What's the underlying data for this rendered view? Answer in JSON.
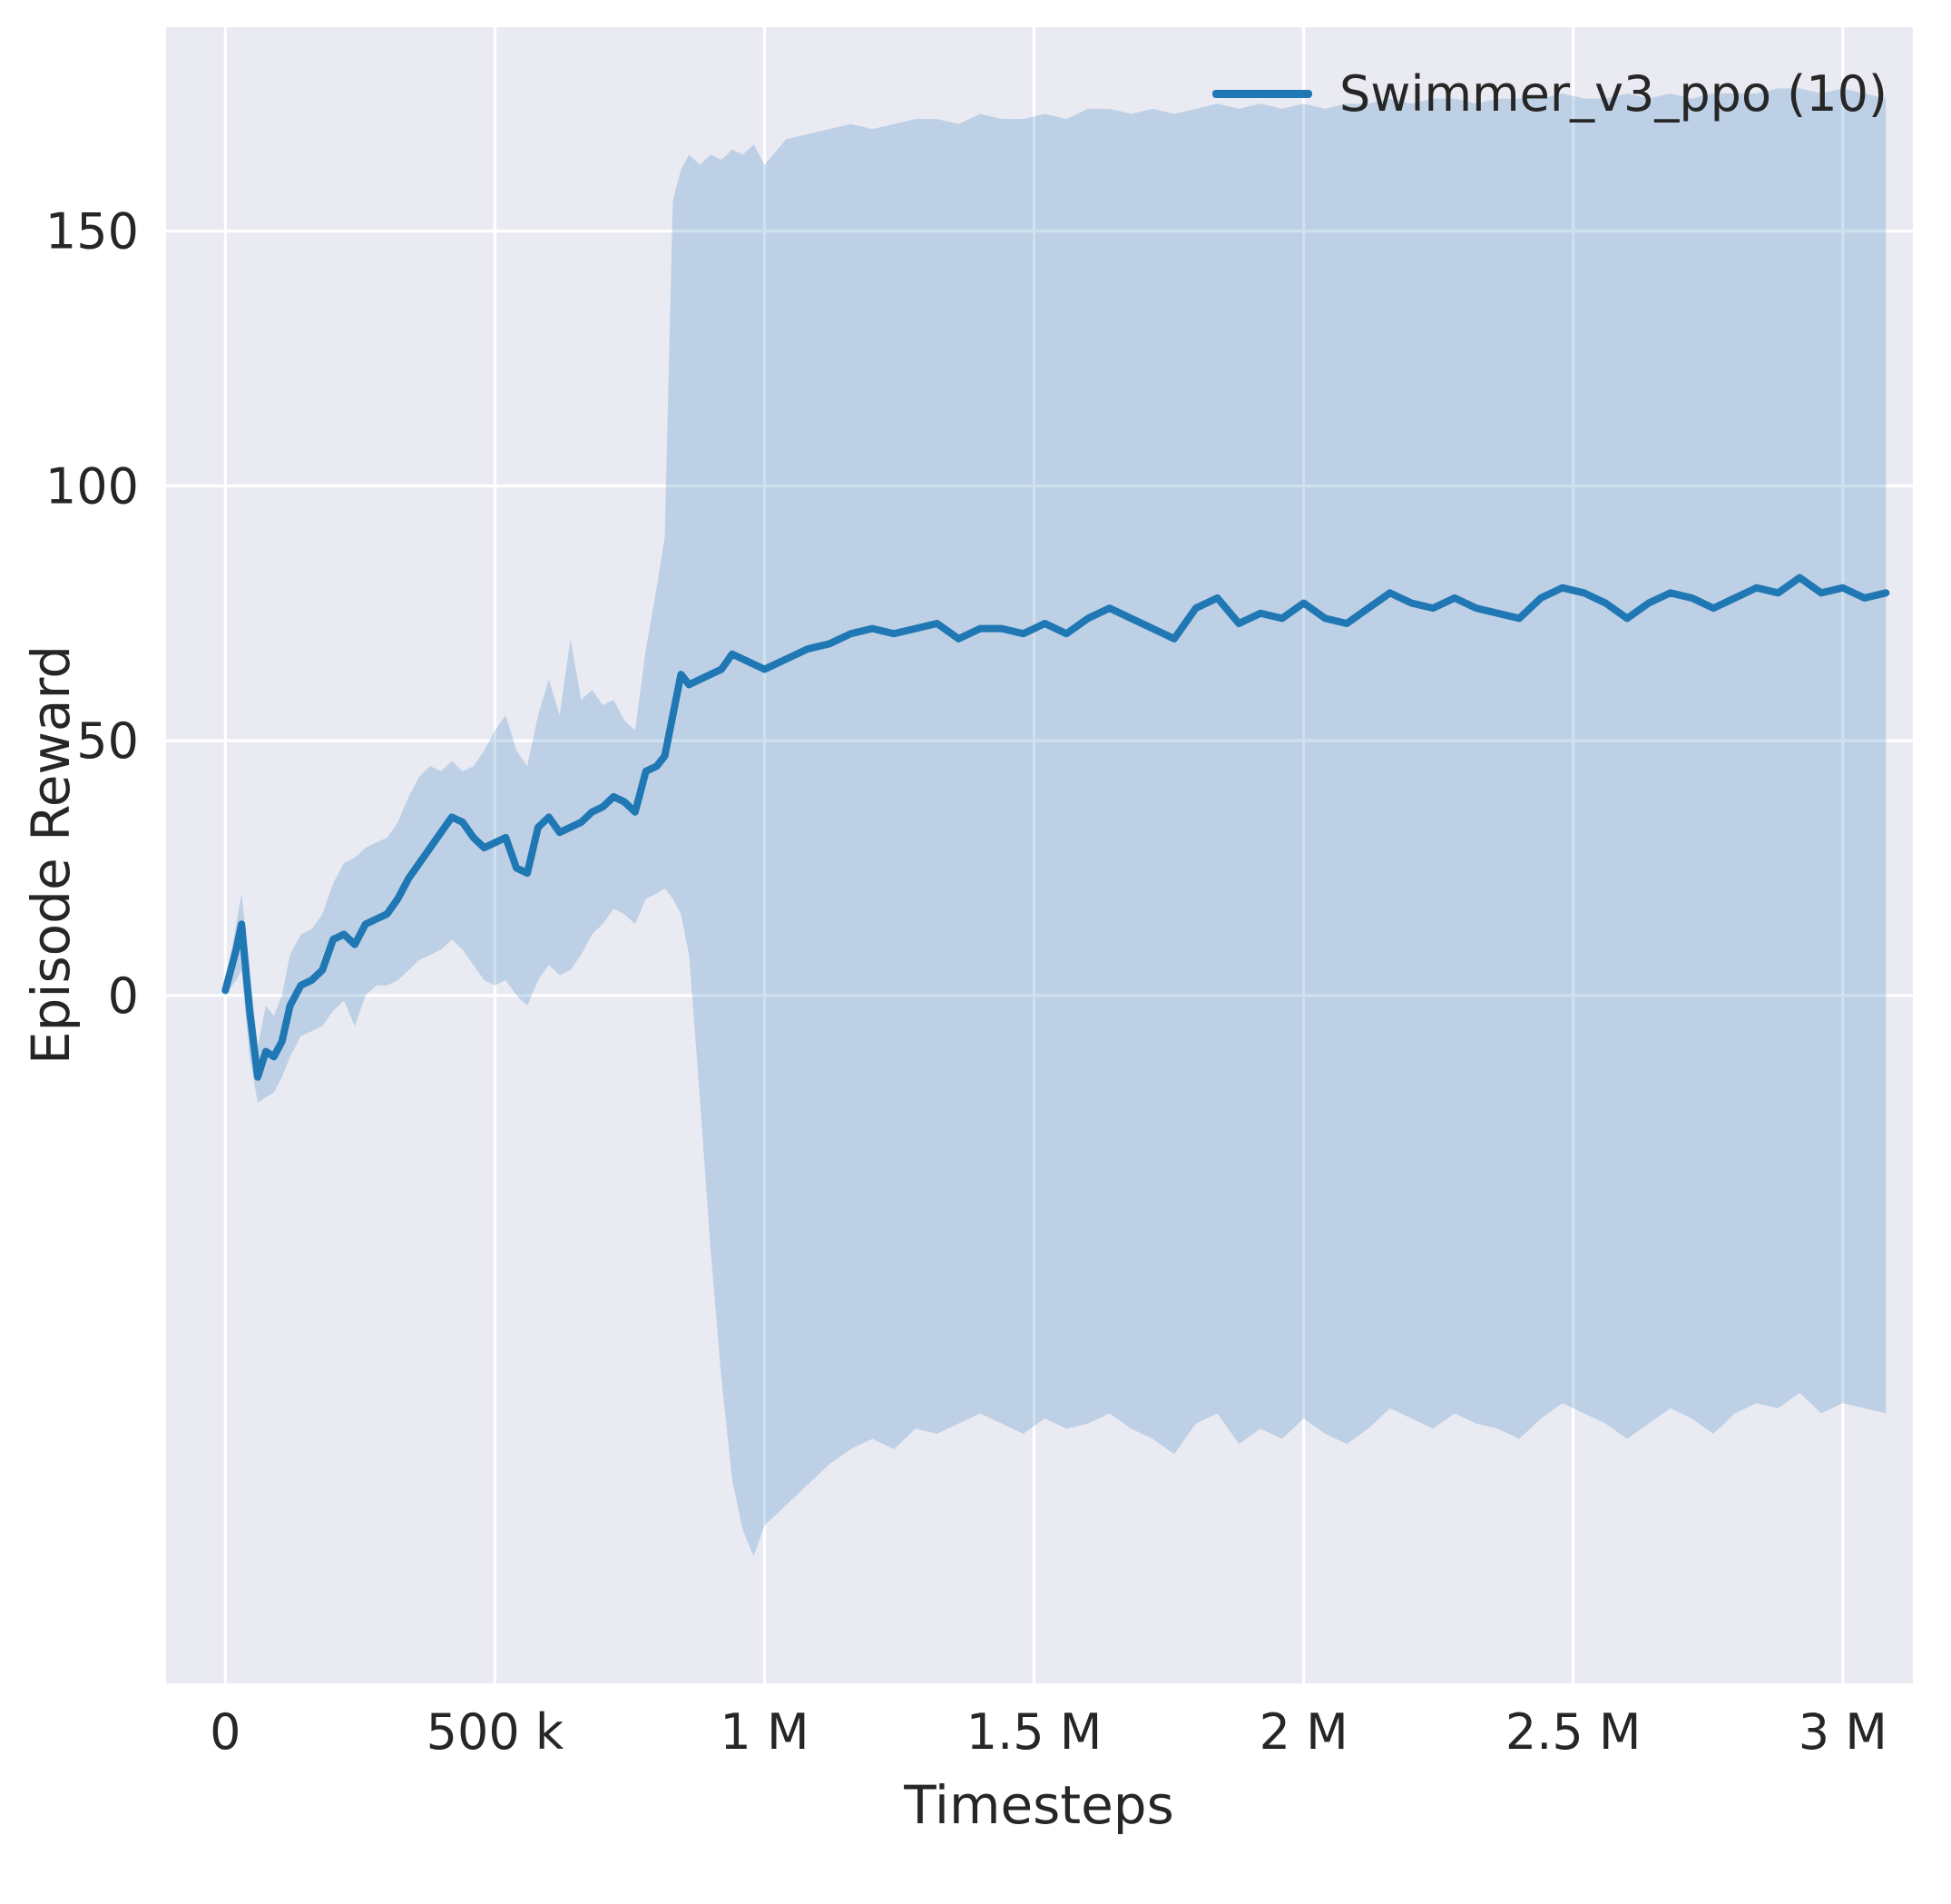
{
  "chart_data": {
    "type": "line",
    "title": "",
    "xlabel": "Timesteps",
    "ylabel": "Episode Reward",
    "legend_label": "Swimmer_v3_ppo (10)",
    "legend_position": "upper right",
    "grid": true,
    "colors": {
      "figure_bg": "#ffffff",
      "plot_bg": "#eaeaf2",
      "grid": "#ffffff",
      "line": "#1f77b4",
      "band": "#1f77b4",
      "tick_text": "#262626"
    },
    "xlim": [
      -110000,
      3130000
    ],
    "ylim": [
      -135,
      190
    ],
    "xticks": [
      {
        "value": 0,
        "label": "0"
      },
      {
        "value": 500000,
        "label": "500 k"
      },
      {
        "value": 1000000,
        "label": "1 M"
      },
      {
        "value": 1500000,
        "label": "1.5 M"
      },
      {
        "value": 2000000,
        "label": "2 M"
      },
      {
        "value": 2500000,
        "label": "2.5 M"
      },
      {
        "value": 3000000,
        "label": "3 M"
      }
    ],
    "yticks": [
      {
        "value": 0,
        "label": "0"
      },
      {
        "value": 50,
        "label": "50"
      },
      {
        "value": 100,
        "label": "100"
      },
      {
        "value": 150,
        "label": "150"
      }
    ],
    "x": [
      0,
      20000,
      30000,
      45000,
      60000,
      75000,
      90000,
      105000,
      120000,
      140000,
      160000,
      180000,
      200000,
      220000,
      240000,
      260000,
      280000,
      300000,
      320000,
      340000,
      360000,
      380000,
      400000,
      420000,
      440000,
      460000,
      480000,
      500000,
      520000,
      540000,
      560000,
      580000,
      600000,
      620000,
      640000,
      660000,
      680000,
      700000,
      720000,
      740000,
      760000,
      780000,
      800000,
      815000,
      830000,
      845000,
      860000,
      880000,
      900000,
      920000,
      940000,
      960000,
      980000,
      1000000,
      1040000,
      1080000,
      1120000,
      1160000,
      1200000,
      1240000,
      1280000,
      1320000,
      1360000,
      1400000,
      1440000,
      1480000,
      1520000,
      1560000,
      1600000,
      1640000,
      1680000,
      1720000,
      1760000,
      1800000,
      1840000,
      1880000,
      1920000,
      1960000,
      2000000,
      2040000,
      2080000,
      2120000,
      2160000,
      2200000,
      2240000,
      2280000,
      2320000,
      2360000,
      2400000,
      2440000,
      2480000,
      2520000,
      2560000,
      2600000,
      2640000,
      2680000,
      2720000,
      2760000,
      2800000,
      2840000,
      2880000,
      2920000,
      2960000,
      3000000,
      3040000,
      3080000
    ],
    "series": [
      {
        "name": "Swimmer_v3_ppo (10)",
        "color": "#1f77b4",
        "band_opacity": 0.22,
        "mean": [
          1,
          9,
          14,
          -3,
          -16,
          -11,
          -12,
          -9,
          -2,
          2,
          3,
          5,
          11,
          12,
          10,
          14,
          15,
          16,
          19,
          23,
          26,
          29,
          32,
          35,
          34,
          31,
          29,
          30,
          31,
          25,
          24,
          33,
          35,
          32,
          33,
          34,
          36,
          37,
          39,
          38,
          36,
          44,
          45,
          47,
          55,
          63,
          61,
          62,
          63,
          64,
          67,
          66,
          65,
          64,
          66,
          68,
          69,
          71,
          72,
          71,
          72,
          73,
          70,
          72,
          72,
          71,
          73,
          71,
          74,
          76,
          74,
          72,
          70,
          76,
          78,
          73,
          75,
          74,
          77,
          74,
          73,
          76,
          79,
          77,
          76,
          78,
          76,
          75,
          74,
          78,
          80,
          79,
          77,
          74,
          77,
          79,
          78,
          76,
          78,
          80,
          79,
          82,
          79,
          80,
          78,
          79
        ],
        "lower": [
          0,
          3,
          5,
          -12,
          -21,
          -20,
          -19,
          -16,
          -12,
          -8,
          -7,
          -6,
          -3,
          -1,
          -6,
          0,
          2,
          2,
          3,
          5,
          7,
          8,
          9,
          11,
          9,
          6,
          3,
          2,
          3,
          0,
          -2,
          3,
          6,
          4,
          5,
          8,
          12,
          14,
          17,
          16,
          14,
          19,
          20,
          21,
          19,
          16,
          8,
          -20,
          -50,
          -75,
          -95,
          -105,
          -110,
          -104,
          -100,
          -96,
          -92,
          -89,
          -87,
          -89,
          -85,
          -86,
          -84,
          -82,
          -84,
          -86,
          -83,
          -85,
          -84,
          -82,
          -85,
          -87,
          -90,
          -84,
          -82,
          -88,
          -85,
          -87,
          -83,
          -86,
          -88,
          -85,
          -81,
          -83,
          -85,
          -82,
          -84,
          -85,
          -87,
          -83,
          -80,
          -82,
          -84,
          -87,
          -84,
          -81,
          -83,
          -86,
          -82,
          -80,
          -81,
          -78,
          -82,
          -80,
          -81,
          -82
        ],
        "upper": [
          2,
          14,
          20,
          5,
          -10,
          -2,
          -4,
          0,
          8,
          12,
          13,
          16,
          22,
          26,
          27,
          29,
          30,
          31,
          34,
          39,
          43,
          45,
          44,
          46,
          44,
          45,
          48,
          52,
          55,
          48,
          45,
          55,
          62,
          55,
          70,
          58,
          60,
          57,
          58,
          54,
          52,
          68,
          80,
          90,
          156,
          162,
          165,
          163,
          165,
          164,
          166,
          165,
          167,
          163,
          168,
          169,
          170,
          171,
          170,
          171,
          172,
          172,
          171,
          173,
          172,
          172,
          173,
          172,
          174,
          174,
          173,
          174,
          173,
          174,
          175,
          174,
          175,
          174,
          175,
          174,
          175,
          175,
          176,
          175,
          176,
          176,
          175,
          176,
          176,
          176,
          177,
          176,
          176,
          177,
          176,
          177,
          176,
          177,
          177,
          177,
          178,
          178,
          177,
          178,
          177,
          176
        ]
      }
    ]
  }
}
